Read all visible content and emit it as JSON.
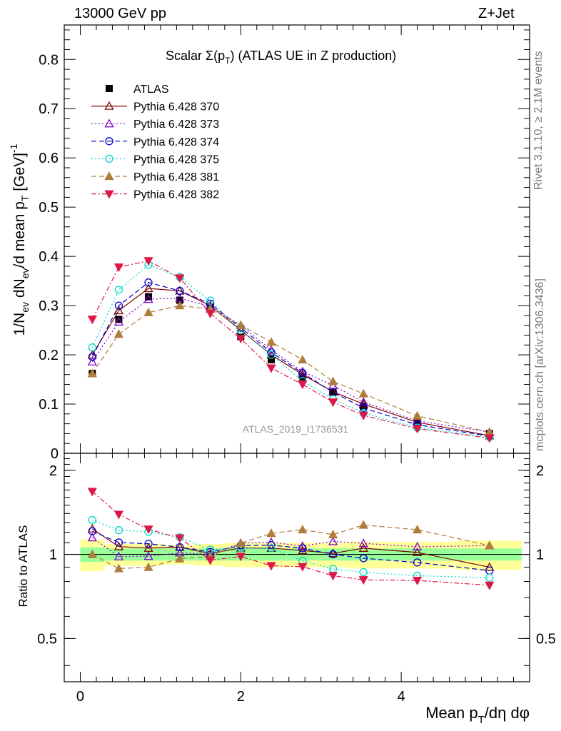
{
  "header": {
    "energy": "13000 GeV pp",
    "process": "Z+Jet"
  },
  "side_labels": {
    "rivet": "Rivet 3.1.10, ≥ 2.1M events",
    "source": "mcplots.cern.ch [arXiv:1306.3436]"
  },
  "watermark": "ATLAS_2019_I1736531",
  "axes": {
    "main_ylabel": "1/N_ev dN_ev/d mean p_T [GeV]^-1",
    "ratio_ylabel": "Ratio to ATLAS",
    "xlabel": "Mean p_T/dη dφ"
  },
  "colors": {
    "atlas": "#000000",
    "p370": "#800000",
    "p373": "#8000cc",
    "p374": "#0000cc",
    "p375": "#00d8c8",
    "p381": "#b07d3c",
    "p382": "#dd1848",
    "band_inner": "#99ff99",
    "band_outer": "#ffff99"
  },
  "chart_data": {
    "type": "scatter",
    "title": "Scalar Σ(p_T) (ATLAS UE in Z production)",
    "title_parts": {
      "prefix": "Scalar Σ(p",
      "sub": "T",
      "suffix": ") (ATLAS UE in Z production)"
    },
    "xlabel": "Mean p_T/dη dφ",
    "ylabel": "1/N_ev dN_ev/d mean p_T [GeV]^-1",
    "xlim": [
      -0.2,
      5.6
    ],
    "ylim": [
      0,
      0.87
    ],
    "ratio_ylim": [
      0.35,
      2.3
    ],
    "x_ticks": [
      "0",
      "2",
      "4"
    ],
    "y_ticks": [
      "0",
      "0.1",
      "0.2",
      "0.3",
      "0.4",
      "0.5",
      "0.6",
      "0.7",
      "0.8"
    ],
    "ratio_ticks": [
      "0.5",
      "1",
      "2"
    ],
    "legend": {
      "placement": "top-left"
    },
    "x": [
      0.15,
      0.48,
      0.85,
      1.24,
      1.62,
      2.0,
      2.38,
      2.77,
      3.15,
      3.53,
      4.2,
      5.1
    ],
    "x_bins": [
      0.0,
      0.3,
      0.65,
      1.05,
      1.43,
      1.8,
      2.2,
      2.57,
      2.95,
      3.33,
      3.72,
      4.7,
      5.5
    ],
    "band_inner": [
      0.06,
      0.05,
      0.05,
      0.05,
      0.05,
      0.05,
      0.05,
      0.05,
      0.05,
      0.05,
      0.05,
      0.05
    ],
    "band_outer": [
      0.13,
      0.09,
      0.09,
      0.08,
      0.09,
      0.1,
      0.1,
      0.1,
      0.1,
      0.11,
      0.11,
      0.12
    ],
    "data": {
      "name": "ATLAS",
      "values": [
        0.162,
        0.272,
        0.318,
        0.311,
        0.298,
        0.237,
        0.19,
        0.155,
        0.124,
        0.095,
        0.062,
        0.04
      ]
    },
    "series": [
      {
        "name": "Pythia 6.428 370",
        "color_key": "p370",
        "marker": "triangle-up",
        "filled": false,
        "dash": "",
        "values": [
          0.2,
          0.29,
          0.335,
          0.33,
          0.3,
          0.25,
          0.2,
          0.16,
          0.125,
          0.1,
          0.063,
          0.036
        ]
      },
      {
        "name": "Pythia 6.428 373",
        "color_key": "p373",
        "marker": "triangle-up",
        "filled": false,
        "dash": "2,3",
        "values": [
          0.186,
          0.267,
          0.313,
          0.315,
          0.298,
          0.26,
          0.21,
          0.166,
          0.138,
          0.104,
          0.066,
          0.043
        ]
      },
      {
        "name": "Pythia 6.428 374",
        "color_key": "p374",
        "marker": "circle",
        "filled": false,
        "dash": "7,4",
        "values": [
          0.196,
          0.3,
          0.347,
          0.33,
          0.304,
          0.255,
          0.205,
          0.163,
          0.124,
          0.092,
          0.058,
          0.035
        ]
      },
      {
        "name": "Pythia 6.428 375",
        "color_key": "p375",
        "marker": "circle",
        "filled": false,
        "dash": "2,3",
        "values": [
          0.215,
          0.332,
          0.383,
          0.358,
          0.31,
          0.25,
          0.2,
          0.147,
          0.11,
          0.082,
          0.052,
          0.033
        ]
      },
      {
        "name": "Pythia 6.428 381",
        "color_key": "p381",
        "marker": "triangle-up",
        "filled": true,
        "dash": "7,4",
        "values": [
          0.162,
          0.242,
          0.286,
          0.3,
          0.293,
          0.26,
          0.226,
          0.19,
          0.146,
          0.121,
          0.076,
          0.043
        ]
      },
      {
        "name": "Pythia 6.428 382",
        "color_key": "p382",
        "marker": "triangle-down",
        "filled": true,
        "dash": "7,3,2,3",
        "values": [
          0.272,
          0.378,
          0.391,
          0.356,
          0.284,
          0.233,
          0.173,
          0.14,
          0.104,
          0.077,
          0.05,
          0.031
        ]
      }
    ]
  }
}
